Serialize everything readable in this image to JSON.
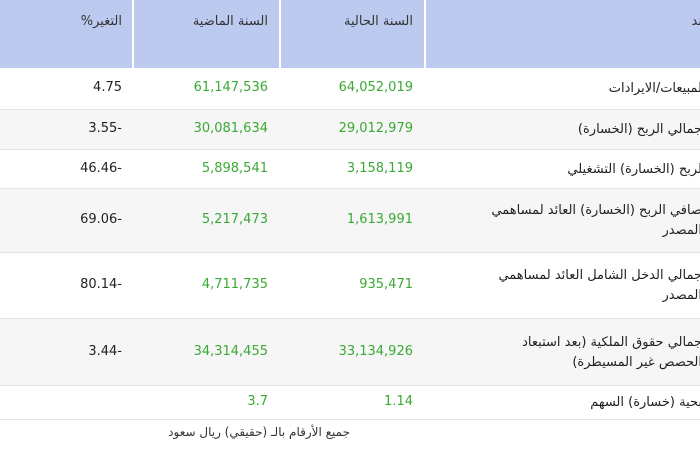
{
  "table": {
    "header": [
      "ند",
      "السنة الحالية",
      "السنة الماضية",
      "التغير%"
    ],
    "rows": [
      {
        "item": [
          "لمبيعات/الايرادات"
        ],
        "current": "64,052,019",
        "previous": "61,147,536",
        "change": "4.75"
      },
      {
        "item": [
          "جمالي الربح (الخسارة)"
        ],
        "current": "29,012,979",
        "previous": "30,081,634",
        "change": "3.55-"
      },
      {
        "item": [
          "لربح (الخسارة) التشغيلي"
        ],
        "current": "3,158,119",
        "previous": "5,898,541",
        "change": "46.46-"
      },
      {
        "item": [
          "صافي الربح (الخسارة) العائد لمساهمي",
          "المصدر"
        ],
        "current": "1,613,991",
        "previous": "5,217,473",
        "change": "69.06-"
      },
      {
        "item": [
          "جمالي الدخل الشامل العائد لمساهمي",
          "المصدر"
        ],
        "current": "935,471",
        "previous": "4,711,735",
        "change": "80.14-"
      },
      {
        "item": [
          "جمالي حقوق الملكية (بعد استبعاد",
          "الحصص غير المسيطرة)"
        ],
        "current": "33,134,926",
        "previous": "34,314,455",
        "change": "3.44-"
      },
      {
        "item": [
          "بحية (خسارة) السهم"
        ],
        "current": "1.14",
        "previous": "3.7"
      }
    ],
    "footnote": "جميع الأرقام بالـ (حقيقي) ريال سعود"
  }
}
